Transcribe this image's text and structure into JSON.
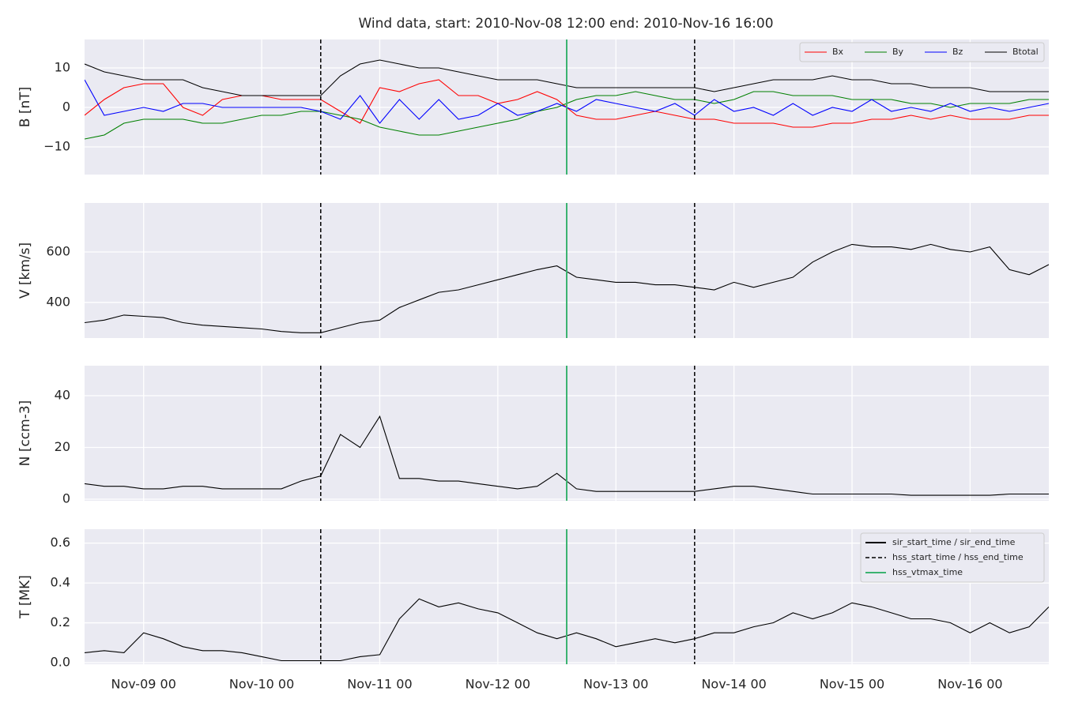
{
  "chart_data": {
    "type": "line",
    "title": "Wind data, start: 2010-Nov-08 12:00  end: 2010-Nov-16 16:00",
    "x": [
      "Nov-08 12",
      "Nov-08 16",
      "Nov-08 20",
      "Nov-09 00",
      "Nov-09 04",
      "Nov-09 08",
      "Nov-09 12",
      "Nov-09 16",
      "Nov-09 20",
      "Nov-10 00",
      "Nov-10 04",
      "Nov-10 08",
      "Nov-10 12",
      "Nov-10 16",
      "Nov-10 20",
      "Nov-11 00",
      "Nov-11 04",
      "Nov-11 08",
      "Nov-11 12",
      "Nov-11 16",
      "Nov-11 20",
      "Nov-12 00",
      "Nov-12 04",
      "Nov-12 08",
      "Nov-12 12",
      "Nov-12 16",
      "Nov-12 20",
      "Nov-13 00",
      "Nov-13 04",
      "Nov-13 08",
      "Nov-13 12",
      "Nov-13 16",
      "Nov-13 20",
      "Nov-14 00",
      "Nov-14 04",
      "Nov-14 08",
      "Nov-14 12",
      "Nov-14 16",
      "Nov-14 20",
      "Nov-15 00",
      "Nov-15 04",
      "Nov-15 08",
      "Nov-15 12",
      "Nov-15 16",
      "Nov-15 20",
      "Nov-16 00",
      "Nov-16 04",
      "Nov-16 08",
      "Nov-16 12",
      "Nov-16 16"
    ],
    "xlim": [
      "Nov-08 12",
      "Nov-16 16"
    ],
    "xticks": [
      "Nov-09 00",
      "Nov-10 00",
      "Nov-11 00",
      "Nov-12 00",
      "Nov-13 00",
      "Nov-14 00",
      "Nov-15 00",
      "Nov-16 00"
    ],
    "grid": true,
    "panels": [
      {
        "ylabel": "B [nT]",
        "ylim": [
          -17,
          17.2
        ],
        "yticks": [
          {
            "value": -10,
            "label": "−10"
          },
          0,
          10
        ],
        "legend": "upper right",
        "series": [
          {
            "name": "Bx",
            "color": "#ff0000",
            "values": [
              -2,
              2,
              5,
              6,
              6,
              0,
              -2,
              2,
              3,
              3,
              2,
              2,
              2,
              -1,
              -4,
              5,
              4,
              6,
              7,
              3,
              3,
              1,
              2,
              4,
              2,
              -2,
              -3,
              -3,
              -2,
              -1,
              -2,
              -3,
              -3,
              -4,
              -4,
              -4,
              -5,
              -5,
              -4,
              -4,
              -3,
              -3,
              -2,
              -3,
              -2,
              -3,
              -3,
              -3,
              -2,
              -2
            ]
          },
          {
            "name": "By",
            "color": "#008000",
            "values": [
              -8,
              -7,
              -4,
              -3,
              -3,
              -3,
              -4,
              -4,
              -3,
              -2,
              -2,
              -1,
              -1,
              -2,
              -3,
              -5,
              -6,
              -7,
              -7,
              -6,
              -5,
              -4,
              -3,
              -1,
              0,
              2,
              3,
              3,
              4,
              3,
              2,
              2,
              1,
              2,
              4,
              4,
              3,
              3,
              3,
              2,
              2,
              2,
              1,
              1,
              0,
              1,
              1,
              1,
              2,
              2
            ]
          },
          {
            "name": "Bz",
            "color": "#0000ff",
            "values": [
              7,
              -2,
              -1,
              0,
              -1,
              1,
              1,
              0,
              0,
              0,
              0,
              0,
              -1,
              -3,
              3,
              -4,
              2,
              -3,
              2,
              -3,
              -2,
              1,
              -2,
              -1,
              1,
              -1,
              2,
              1,
              0,
              -1,
              1,
              -2,
              2,
              -1,
              0,
              -2,
              1,
              -2,
              0,
              -1,
              2,
              -1,
              0,
              -1,
              1,
              -1,
              0,
              -1,
              0,
              1
            ]
          },
          {
            "name": "Btotal",
            "color": "#000000",
            "values": [
              11,
              9,
              8,
              7,
              7,
              7,
              5,
              4,
              3,
              3,
              3,
              3,
              3,
              8,
              11,
              12,
              11,
              10,
              10,
              9,
              8,
              7,
              7,
              7,
              6,
              5,
              5,
              5,
              5,
              5,
              5,
              5,
              4,
              5,
              6,
              7,
              7,
              7,
              8,
              7,
              7,
              6,
              6,
              5,
              5,
              5,
              4,
              4,
              4,
              4
            ]
          }
        ]
      },
      {
        "ylabel": "V [km/s]",
        "ylim": [
          259,
          794
        ],
        "yticks": [
          400,
          600
        ],
        "series": [
          {
            "color": "#000000",
            "values": [
              320,
              330,
              350,
              345,
              340,
              320,
              310,
              305,
              300,
              295,
              285,
              280,
              280,
              300,
              320,
              330,
              380,
              410,
              440,
              450,
              470,
              490,
              510,
              530,
              545,
              500,
              490,
              480,
              480,
              470,
              470,
              460,
              450,
              480,
              460,
              480,
              500,
              560,
              600,
              630,
              620,
              620,
              610,
              630,
              610,
              600,
              620,
              530,
              510,
              550
            ]
          }
        ]
      },
      {
        "ylabel": "N [ccm-3]",
        "ylim": [
          -0.6,
          51.6
        ],
        "yticks": [
          0,
          20,
          40
        ],
        "series": [
          {
            "color": "#000000",
            "values": [
              6,
              5,
              5,
              4,
              4,
              5,
              5,
              4,
              4,
              4,
              4,
              7,
              9,
              25,
              20,
              32,
              8,
              8,
              7,
              7,
              6,
              5,
              4,
              5,
              10,
              4,
              3,
              3,
              3,
              3,
              3,
              3,
              4,
              5,
              5,
              4,
              3,
              2,
              2,
              2,
              2,
              2,
              1.5,
              1.5,
              1.5,
              1.5,
              1.5,
              2,
              2,
              2
            ]
          }
        ]
      },
      {
        "ylabel": "T [MK]",
        "ylim": [
          -0.008,
          0.67
        ],
        "yticks": [
          {
            "value": 0,
            "label": "0.0"
          },
          0.2,
          0.4,
          0.6
        ],
        "legend": "upper right",
        "series": [
          {
            "color": "#000000",
            "values": [
              0.05,
              0.06,
              0.05,
              0.15,
              0.12,
              0.08,
              0.06,
              0.06,
              0.05,
              0.03,
              0.01,
              0.01,
              0.01,
              0.01,
              0.03,
              0.04,
              0.22,
              0.32,
              0.28,
              0.3,
              0.27,
              0.25,
              0.2,
              0.15,
              0.12,
              0.15,
              0.12,
              0.08,
              0.1,
              0.12,
              0.1,
              0.12,
              0.15,
              0.15,
              0.18,
              0.2,
              0.25,
              0.22,
              0.25,
              0.3,
              0.28,
              0.25,
              0.22,
              0.22,
              0.2,
              0.15,
              0.2,
              0.15,
              0.18,
              0.28
            ]
          }
        ]
      }
    ],
    "vlines": [
      {
        "name": "sir_start_time / sir_end_time",
        "color": "#000000",
        "style": "solid",
        "x": []
      },
      {
        "name": "hss_start_time / hss_end_time",
        "color": "#000000",
        "style": "dashed",
        "x": [
          "Nov-10 12",
          "Nov-13 16"
        ]
      },
      {
        "name": "hss_vtmax_time",
        "color": "#3cb371",
        "style": "solid",
        "x": [
          "Nov-12 14"
        ]
      }
    ]
  }
}
